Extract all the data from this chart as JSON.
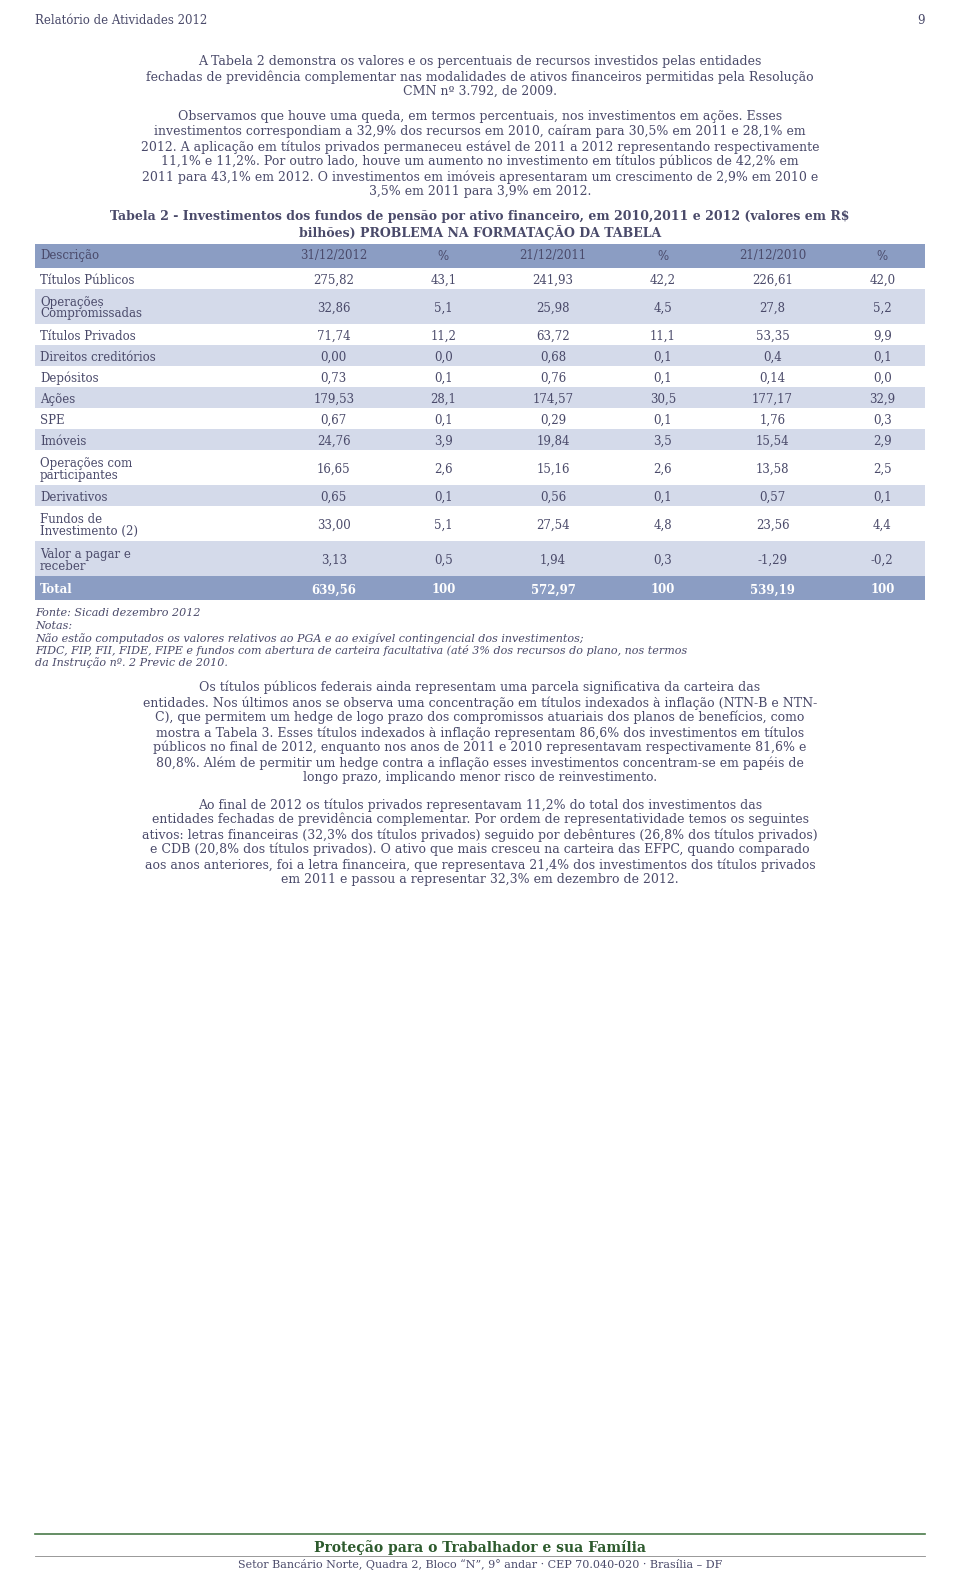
{
  "page_number": "9",
  "header_left": "Relatório de Atividades 2012",
  "bg_color": "#ffffff",
  "text_color": "#4a4a6a",
  "p1_lines": [
    "A Tabela 2 demonstra os valores e os percentuais de recursos investidos pelas entidades",
    "fechadas de previdência complementar nas modalidades de ativos financeiros permitidas pela Resolução",
    "CMN nº 3.792, de 2009."
  ],
  "p2_lines": [
    "Observamos que houve uma queda, em termos percentuais, nos investimentos em ações. Esses",
    "investimentos correspondiam a 32,9% dos recursos em 2010, caíram para 30,5% em 2011 e 28,1% em",
    "2012. A aplicação em títulos privados permaneceu estável de 2011 a 2012 representando respectivamente",
    "11,1% e 11,2%. Por outro lado, houve um aumento no investimento em títulos públicos de 42,2% em",
    "2011 para 43,1% em 2012. O investimentos em imóveis apresentaram um crescimento de 2,9% em 2010 e",
    "3,5% em 2011 para 3,9% em 2012."
  ],
  "table_title_lines": [
    "Tabela 2 - Investimentos dos fundos de pensão por ativo financeiro, em 2010,2011 e 2012 (valores em R$",
    "bilhões) PROBLEMA NA FORMATAÇÃO DA TABELA"
  ],
  "table_header": [
    "Descrição",
    "31/12/2012",
    "%",
    "21/12/2011",
    "%",
    "21/12/2010",
    "%"
  ],
  "table_rows": [
    [
      "Títulos Públicos",
      "275,82",
      "43,1",
      "241,93",
      "42,2",
      "226,61",
      "42,0"
    ],
    [
      "Operações\nCompromissadas",
      "32,86",
      "5,1",
      "25,98",
      "4,5",
      "27,8",
      "5,2"
    ],
    [
      "Títulos Privados",
      "71,74",
      "11,2",
      "63,72",
      "11,1",
      "53,35",
      "9,9"
    ],
    [
      "Direitos creditórios",
      "0,00",
      "0,0",
      "0,68",
      "0,1",
      "0,4",
      "0,1"
    ],
    [
      "Depósitos",
      "0,73",
      "0,1",
      "0,76",
      "0,1",
      "0,14",
      "0,0"
    ],
    [
      "Ações",
      "179,53",
      "28,1",
      "174,57",
      "30,5",
      "177,17",
      "32,9"
    ],
    [
      "SPE",
      "0,67",
      "0,1",
      "0,29",
      "0,1",
      "1,76",
      "0,3"
    ],
    [
      "Imóveis",
      "24,76",
      "3,9",
      "19,84",
      "3,5",
      "15,54",
      "2,9"
    ],
    [
      "Operações com\nparticipantes",
      "16,65",
      "2,6",
      "15,16",
      "2,6",
      "13,58",
      "2,5"
    ],
    [
      "Derivativos",
      "0,65",
      "0,1",
      "0,56",
      "0,1",
      "0,57",
      "0,1"
    ],
    [
      "Fundos de\nInvestimento (2)",
      "33,00",
      "5,1",
      "27,54",
      "4,8",
      "23,56",
      "4,4"
    ],
    [
      "Valor a pagar e\nreceber",
      "3,13",
      "0,5",
      "1,94",
      "0,3",
      "-1,29",
      "-0,2"
    ],
    [
      "Total",
      "639,56",
      "100",
      "572,97",
      "100",
      "539,19",
      "100"
    ]
  ],
  "shaded_rows": [
    1,
    3,
    5,
    7,
    9,
    11
  ],
  "total_row": 12,
  "fonte": "Fonte: Sicadi dezembro 2012",
  "notas_title": "Notas:",
  "nota1": "Não estão computados os valores relativos ao PGA e ao exigível contingencial dos investimentos;",
  "nota2_lines": [
    "FIDC, FIP, FII, FIDE, FIPE e fundos com abertura de carteira facultativa (até 3% dos recursos do plano, nos termos",
    "da Instrução nº. 2 Previc de 2010."
  ],
  "p3_lines": [
    "Os títulos públicos federais ainda representam uma parcela significativa da carteira das",
    "entidades. Nos últimos anos se observa uma concentração em títulos indexados à inflação (NTN-B e NTN-",
    "C), que permitem um hedge de logo prazo dos compromissos atuariais dos planos de benefícios, como",
    "mostra a Tabela 3. Esses títulos indexados à inflação representam 86,6% dos investimentos em títulos",
    "públicos no final de 2012, enquanto nos anos de 2011 e 2010 representavam respectivamente 81,6% e",
    "80,8%. Além de permitir um hedge contra a inflação esses investimentos concentram-se em papéis de",
    "longo prazo, implicando menor risco de reinvestimento."
  ],
  "p4_lines": [
    "Ao final de 2012 os títulos privados representavam 11,2% do total dos investimentos das",
    "entidades fechadas de previdência complementar. Por ordem de representatividade temos os seguintes",
    "ativos: letras financeiras (32,3% dos títulos privados) seguido por debêntures (26,8% dos títulos privados)",
    "e CDB (20,8% dos títulos privados). O ativo que mais cresceu na carteira das EFPC, quando comparado",
    "aos anos anteriores, foi a letra financeira, que representava 21,4% dos investimentos dos títulos privados",
    "em 2011 e passou a representar 32,3% em dezembro de 2012."
  ],
  "footer_text": "Proteção para o Trabalhador e sua Família",
  "footer_sub": "Setor Bancário Norte, Quadra 2, Bloco “N”, 9° andar · CEP 70.040-020 · Brasília – DF",
  "header_color": "#8b9dc3",
  "shaded_color": "#d4daea",
  "total_color": "#8b9dc3",
  "footer_line_color": "#4a7a4a",
  "footer_text_color": "#2d5a2d"
}
